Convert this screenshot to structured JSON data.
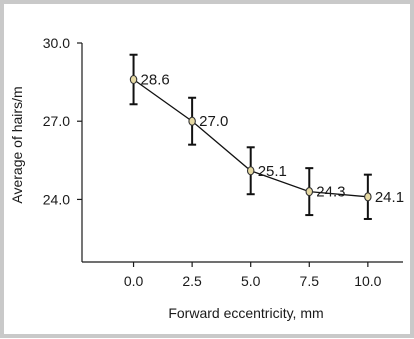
{
  "chart_data": {
    "type": "line",
    "title": "",
    "xlabel": "Forward eccentricity, mm",
    "ylabel": "Average of hairs/m",
    "x": [
      0.0,
      2.5,
      5.0,
      7.5,
      10.0
    ],
    "x_tick_labels": [
      "0.0",
      "2.5",
      "5.0",
      "7.5",
      "10.0"
    ],
    "y_tick_values": [
      24.0,
      27.0,
      30.0
    ],
    "y_tick_labels": [
      "24.0",
      "27.0",
      "30.0"
    ],
    "xlim": [
      -2.2,
      11.5
    ],
    "ylim": [
      21.6,
      30.0
    ],
    "series": [
      {
        "values": [
          28.6,
          27.0,
          25.1,
          24.3,
          24.1
        ],
        "error": [
          0.95,
          0.9,
          0.9,
          0.9,
          0.85
        ],
        "data_labels": [
          "28.6",
          "27.0",
          "25.1",
          "24.3",
          "24.1"
        ],
        "line_color": "#111111",
        "marker_color": "#e6d9a3"
      }
    ],
    "grid": false,
    "legend": "none"
  }
}
